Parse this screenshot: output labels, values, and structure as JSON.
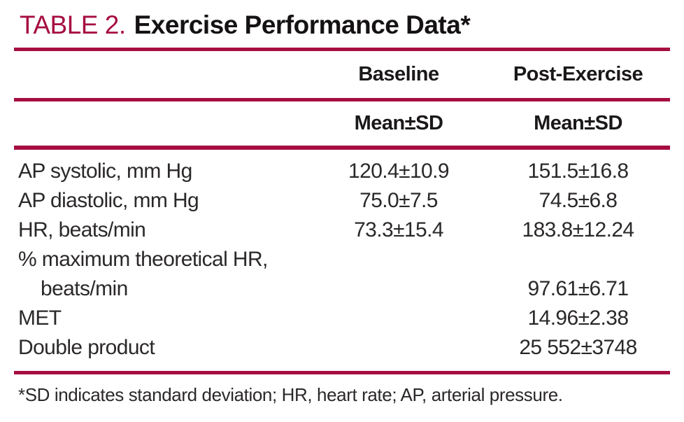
{
  "accent_color": "#a60d40",
  "title": {
    "label": "TABLE 2.",
    "text": "Exercise Performance Data",
    "asterisk": "*"
  },
  "table": {
    "column_groups": [
      {
        "label": "Baseline"
      },
      {
        "label": "Post-Exercise"
      }
    ],
    "sub_headers": [
      {
        "label": "Mean±SD"
      },
      {
        "label": "Mean±SD"
      }
    ],
    "rows": [
      {
        "label": "AP systolic, mm Hg",
        "baseline": "120.4±10.9",
        "post_exercise": "151.5±16.8",
        "indent": false
      },
      {
        "label": "AP diastolic, mm Hg",
        "baseline": "75.0±7.5",
        "post_exercise": "74.5±6.8",
        "indent": false
      },
      {
        "label": "HR, beats/min",
        "baseline": "73.3±15.4",
        "post_exercise": "183.8±12.24",
        "indent": false
      },
      {
        "label": "% maximum theoretical HR,",
        "baseline": "",
        "post_exercise": "",
        "indent": false
      },
      {
        "label": "beats/min",
        "baseline": "",
        "post_exercise": "97.61±6.71",
        "indent": true
      },
      {
        "label": "MET",
        "baseline": "",
        "post_exercise": "14.96±2.38",
        "indent": false
      },
      {
        "label": "Double product",
        "baseline": "",
        "post_exercise": "25 552±3748",
        "indent": false
      }
    ]
  },
  "footnote": "*SD indicates standard deviation; HR, heart rate; AP, arterial pressure."
}
